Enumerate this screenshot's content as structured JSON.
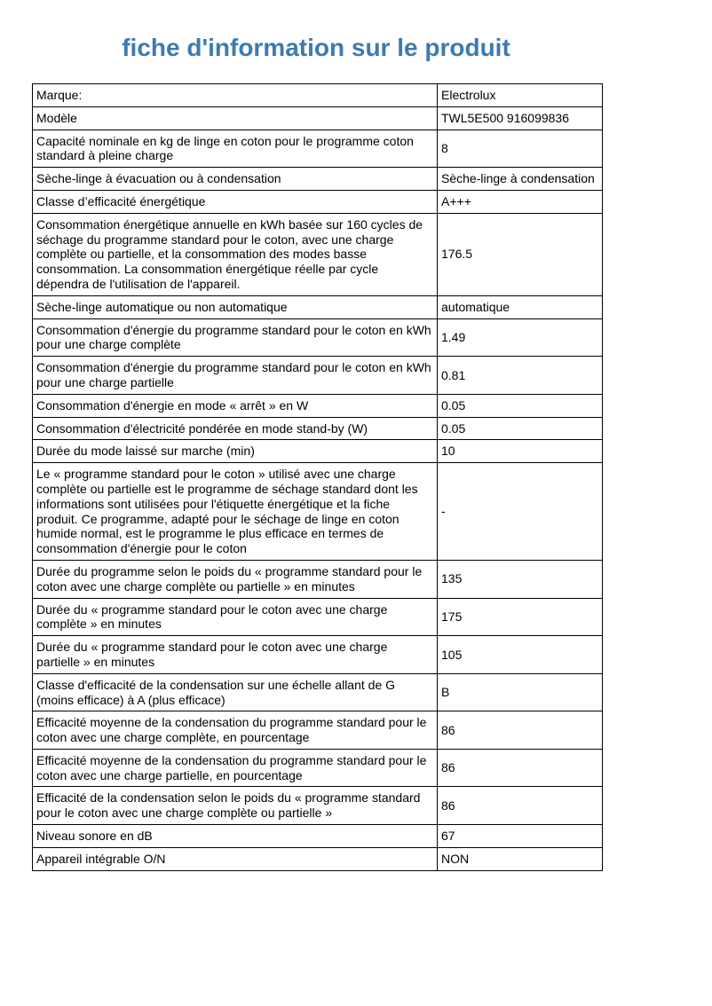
{
  "page": {
    "title": "fiche d'information sur le produit"
  },
  "colors": {
    "title_blue": "#3d7ab1",
    "table_border": "#000000"
  },
  "table": {
    "rows": [
      {
        "label": "Marque:",
        "value": "Electrolux"
      },
      {
        "label": "Modèle",
        "value": "TWL5E500 916099836"
      },
      {
        "label": "Capacité nominale en kg de linge en coton pour le programme coton standard à pleine charge",
        "value": "8"
      },
      {
        "label": "Sèche-linge à évacuation ou à condensation",
        "value": "Sèche-linge à condensation"
      },
      {
        "label": "Classe d’efficacité énergétique",
        "value": "A+++"
      },
      {
        "label": "Consommation énergétique annuelle en kWh basée sur 160 cycles de séchage du programme standard pour le coton, avec une charge complète ou partielle, et la consommation des modes basse consommation. La consommation énergétique réelle par cycle dépendra de l'utilisation de l'appareil.",
        "value": "176.5"
      },
      {
        "label": "Sèche-linge automatique ou non automatique",
        "value": "automatique"
      },
      {
        "label": "Consommation d'énergie du programme standard pour le coton en kWh pour une charge complète",
        "value": "1.49"
      },
      {
        "label": "Consommation d'énergie du programme standard pour le coton en kWh pour une charge partielle",
        "value": "0.81"
      },
      {
        "label": "Consommation d'énergie en mode « arrêt » en W",
        "value": "0.05"
      },
      {
        "label": "Consommation d'électricité pondérée en mode stand-by (W)",
        "value": "0.05"
      },
      {
        "label": "Durée du mode laissé sur marche (min)",
        "value": "10"
      },
      {
        "label": "Le « programme standard pour le coton » utilisé avec une charge complète ou partielle est le programme de séchage standard dont les informations sont utilisées pour l'étiquette énergétique et la fiche produit. Ce programme, adapté pour le séchage de linge en coton humide normal, est le programme le plus efficace en termes de consommation d'énergie pour le coton",
        "value": "-"
      },
      {
        "label": "Durée du programme selon le poids du « programme standard pour le coton avec une charge complète ou partielle » en minutes",
        "value": "135"
      },
      {
        "label": "Durée du « programme standard pour le coton avec une charge complète » en minutes",
        "value": "175"
      },
      {
        "label": "Durée du « programme standard pour le coton avec une charge partielle » en minutes",
        "value": "105"
      },
      {
        "label": "Classe d'efficacité de la condensation sur une échelle allant de G (moins efficace) à A (plus efficace)",
        "value": "B"
      },
      {
        "label": "Efficacité moyenne de la condensation du programme standard pour le coton avec une charge complète, en pourcentage",
        "value": "86"
      },
      {
        "label": "Efficacité moyenne de la condensation du programme standard pour le coton avec une charge partielle, en pourcentage",
        "value": "86"
      },
      {
        "label": "Efficacité de la condensation selon le poids du « programme standard pour le coton avec une charge complète ou partielle »",
        "value": "86"
      },
      {
        "label": "Niveau sonore en dB",
        "value": "67"
      },
      {
        "label": "Appareil intégrable O/N",
        "value": "NON"
      }
    ]
  }
}
